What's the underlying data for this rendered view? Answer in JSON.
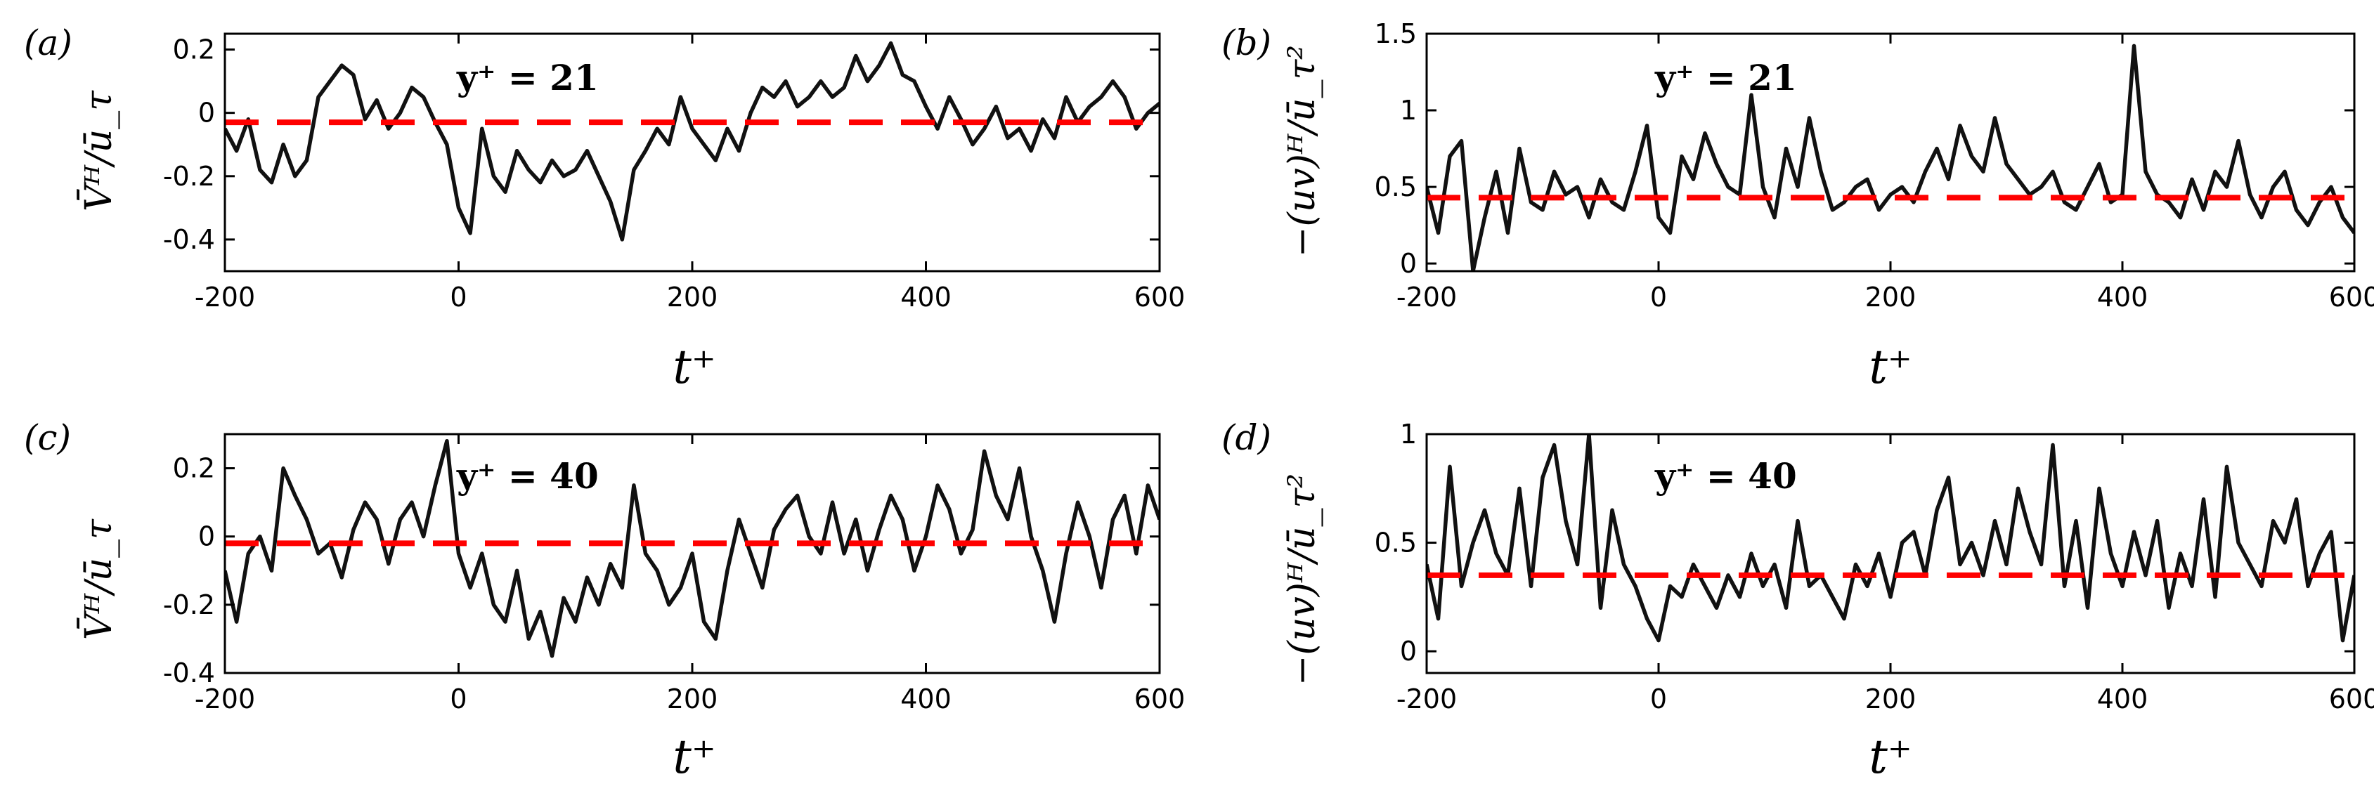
{
  "chart_data": [
    {
      "id": "a",
      "type": "line",
      "panel_label": "(a)",
      "title": "",
      "annotation": "y⁺ = 21",
      "xlabel": "t⁺",
      "ylabel": "V̄ᴴ/ū_τ",
      "xlim": [
        -200,
        600
      ],
      "ylim": [
        -0.5,
        0.25
      ],
      "xticks": [
        -200,
        0,
        200,
        400,
        600
      ],
      "xtick_labels": [
        "-200",
        "0",
        "200",
        "400",
        "600"
      ],
      "yticks": [
        -0.4,
        -0.2,
        0,
        0.2
      ],
      "ytick_labels": [
        "-0.4",
        "-0.2",
        "0",
        "0.2"
      ],
      "series": [
        {
          "name": "signal",
          "color": "#111111",
          "x_start": -200,
          "x_step": 10,
          "values": [
            -0.05,
            -0.12,
            -0.02,
            -0.18,
            -0.22,
            -0.1,
            -0.2,
            -0.15,
            0.05,
            0.1,
            0.15,
            0.12,
            -0.02,
            0.04,
            -0.05,
            0.0,
            0.08,
            0.05,
            -0.03,
            -0.1,
            -0.3,
            -0.38,
            -0.05,
            -0.2,
            -0.25,
            -0.12,
            -0.18,
            -0.22,
            -0.15,
            -0.2,
            -0.18,
            -0.12,
            -0.2,
            -0.28,
            -0.4,
            -0.18,
            -0.12,
            -0.05,
            -0.1,
            0.05,
            -0.05,
            -0.1,
            -0.15,
            -0.05,
            -0.12,
            0.0,
            0.08,
            0.05,
            0.1,
            0.02,
            0.05,
            0.1,
            0.05,
            0.08,
            0.18,
            0.1,
            0.15,
            0.22,
            0.12,
            0.1,
            0.02,
            -0.05,
            0.05,
            -0.02,
            -0.1,
            -0.05,
            0.02,
            -0.08,
            -0.05,
            -0.12,
            -0.02,
            -0.08,
            0.05,
            -0.03,
            0.02,
            0.05,
            0.1,
            0.05,
            -0.05,
            0.0,
            0.03
          ]
        }
      ],
      "mean_line": {
        "value": -0.03,
        "color": "#ff0000",
        "style": "dashed"
      }
    },
    {
      "id": "b",
      "type": "line",
      "panel_label": "(b)",
      "title": "",
      "annotation": "y⁺ = 21",
      "xlabel": "t⁺",
      "ylabel": "−(uv)ᴴ/ū_τ²",
      "xlim": [
        -200,
        600
      ],
      "ylim": [
        -0.05,
        1.5
      ],
      "xticks": [
        -200,
        0,
        200,
        400,
        600
      ],
      "xtick_labels": [
        "-200",
        "0",
        "200",
        "400",
        "600"
      ],
      "yticks": [
        0,
        0.5,
        1,
        1.5
      ],
      "ytick_labels": [
        "0",
        "0.5",
        "1",
        "1.5"
      ],
      "series": [
        {
          "name": "signal",
          "color": "#111111",
          "x_start": -200,
          "x_step": 10,
          "values": [
            0.5,
            0.2,
            0.7,
            0.8,
            -0.05,
            0.3,
            0.6,
            0.2,
            0.75,
            0.4,
            0.35,
            0.6,
            0.45,
            0.5,
            0.3,
            0.55,
            0.4,
            0.35,
            0.6,
            0.9,
            0.3,
            0.2,
            0.7,
            0.55,
            0.85,
            0.65,
            0.5,
            0.45,
            1.1,
            0.5,
            0.3,
            0.75,
            0.5,
            0.95,
            0.6,
            0.35,
            0.4,
            0.5,
            0.55,
            0.35,
            0.45,
            0.5,
            0.4,
            0.6,
            0.75,
            0.55,
            0.9,
            0.7,
            0.6,
            0.95,
            0.65,
            0.55,
            0.45,
            0.5,
            0.6,
            0.4,
            0.35,
            0.5,
            0.65,
            0.4,
            0.45,
            1.42,
            0.6,
            0.45,
            0.4,
            0.3,
            0.55,
            0.35,
            0.6,
            0.5,
            0.8,
            0.45,
            0.3,
            0.5,
            0.6,
            0.35,
            0.25,
            0.4,
            0.5,
            0.3,
            0.2
          ]
        }
      ],
      "mean_line": {
        "value": 0.43,
        "color": "#ff0000",
        "style": "dashed"
      }
    },
    {
      "id": "c",
      "type": "line",
      "panel_label": "(c)",
      "title": "",
      "annotation": "y⁺ = 40",
      "xlabel": "t⁺",
      "ylabel": "V̄ᴴ/ū_τ",
      "xlim": [
        -200,
        600
      ],
      "ylim": [
        -0.4,
        0.3
      ],
      "xticks": [
        -200,
        0,
        200,
        400,
        600
      ],
      "xtick_labels": [
        "-200",
        "0",
        "200",
        "400",
        "600"
      ],
      "yticks": [
        -0.4,
        -0.2,
        0,
        0.2
      ],
      "ytick_labels": [
        "-0.4",
        "-0.2",
        "0",
        "0.2"
      ],
      "series": [
        {
          "name": "signal",
          "color": "#111111",
          "x_start": -200,
          "x_step": 10,
          "values": [
            -0.1,
            -0.25,
            -0.05,
            0.0,
            -0.1,
            0.2,
            0.12,
            0.05,
            -0.05,
            -0.02,
            -0.12,
            0.02,
            0.1,
            0.05,
            -0.08,
            0.05,
            0.1,
            0.0,
            0.15,
            0.28,
            -0.05,
            -0.15,
            -0.05,
            -0.2,
            -0.25,
            -0.1,
            -0.3,
            -0.22,
            -0.35,
            -0.18,
            -0.25,
            -0.12,
            -0.2,
            -0.08,
            -0.15,
            0.15,
            -0.05,
            -0.1,
            -0.2,
            -0.15,
            -0.05,
            -0.25,
            -0.3,
            -0.1,
            0.05,
            -0.05,
            -0.15,
            0.02,
            0.08,
            0.12,
            0.0,
            -0.05,
            0.1,
            -0.05,
            0.05,
            -0.1,
            0.02,
            0.12,
            0.05,
            -0.1,
            0.0,
            0.15,
            0.08,
            -0.05,
            0.02,
            0.25,
            0.12,
            0.05,
            0.2,
            0.0,
            -0.1,
            -0.25,
            -0.05,
            0.1,
            0.0,
            -0.15,
            0.05,
            0.12,
            -0.05,
            0.15,
            0.05
          ]
        }
      ],
      "mean_line": {
        "value": -0.02,
        "color": "#ff0000",
        "style": "dashed"
      }
    },
    {
      "id": "d",
      "type": "line",
      "panel_label": "(d)",
      "title": "",
      "annotation": "y⁺ = 40",
      "xlabel": "t⁺",
      "ylabel": "−(uv)ᴴ/ū_τ²",
      "xlim": [
        -200,
        600
      ],
      "ylim": [
        -0.1,
        1.0
      ],
      "xticks": [
        -200,
        0,
        200,
        400,
        600
      ],
      "xtick_labels": [
        "-200",
        "0",
        "200",
        "400",
        "600"
      ],
      "yticks": [
        0,
        0.5,
        1
      ],
      "ytick_labels": [
        "0",
        "0.5",
        "1"
      ],
      "series": [
        {
          "name": "signal",
          "color": "#111111",
          "x_start": -200,
          "x_step": 10,
          "values": [
            0.4,
            0.15,
            0.85,
            0.3,
            0.5,
            0.65,
            0.45,
            0.35,
            0.75,
            0.3,
            0.8,
            0.95,
            0.6,
            0.4,
            1.0,
            0.2,
            0.65,
            0.4,
            0.3,
            0.15,
            0.05,
            0.3,
            0.25,
            0.4,
            0.3,
            0.2,
            0.35,
            0.25,
            0.45,
            0.3,
            0.4,
            0.2,
            0.6,
            0.3,
            0.35,
            0.25,
            0.15,
            0.4,
            0.3,
            0.45,
            0.25,
            0.5,
            0.55,
            0.35,
            0.65,
            0.8,
            0.4,
            0.5,
            0.35,
            0.6,
            0.4,
            0.75,
            0.55,
            0.4,
            0.95,
            0.3,
            0.6,
            0.2,
            0.75,
            0.45,
            0.3,
            0.55,
            0.35,
            0.6,
            0.2,
            0.45,
            0.3,
            0.7,
            0.25,
            0.85,
            0.5,
            0.4,
            0.3,
            0.6,
            0.5,
            0.7,
            0.3,
            0.45,
            0.55,
            0.05,
            0.35
          ]
        }
      ],
      "mean_line": {
        "value": 0.35,
        "color": "#ff0000",
        "style": "dashed"
      }
    }
  ]
}
